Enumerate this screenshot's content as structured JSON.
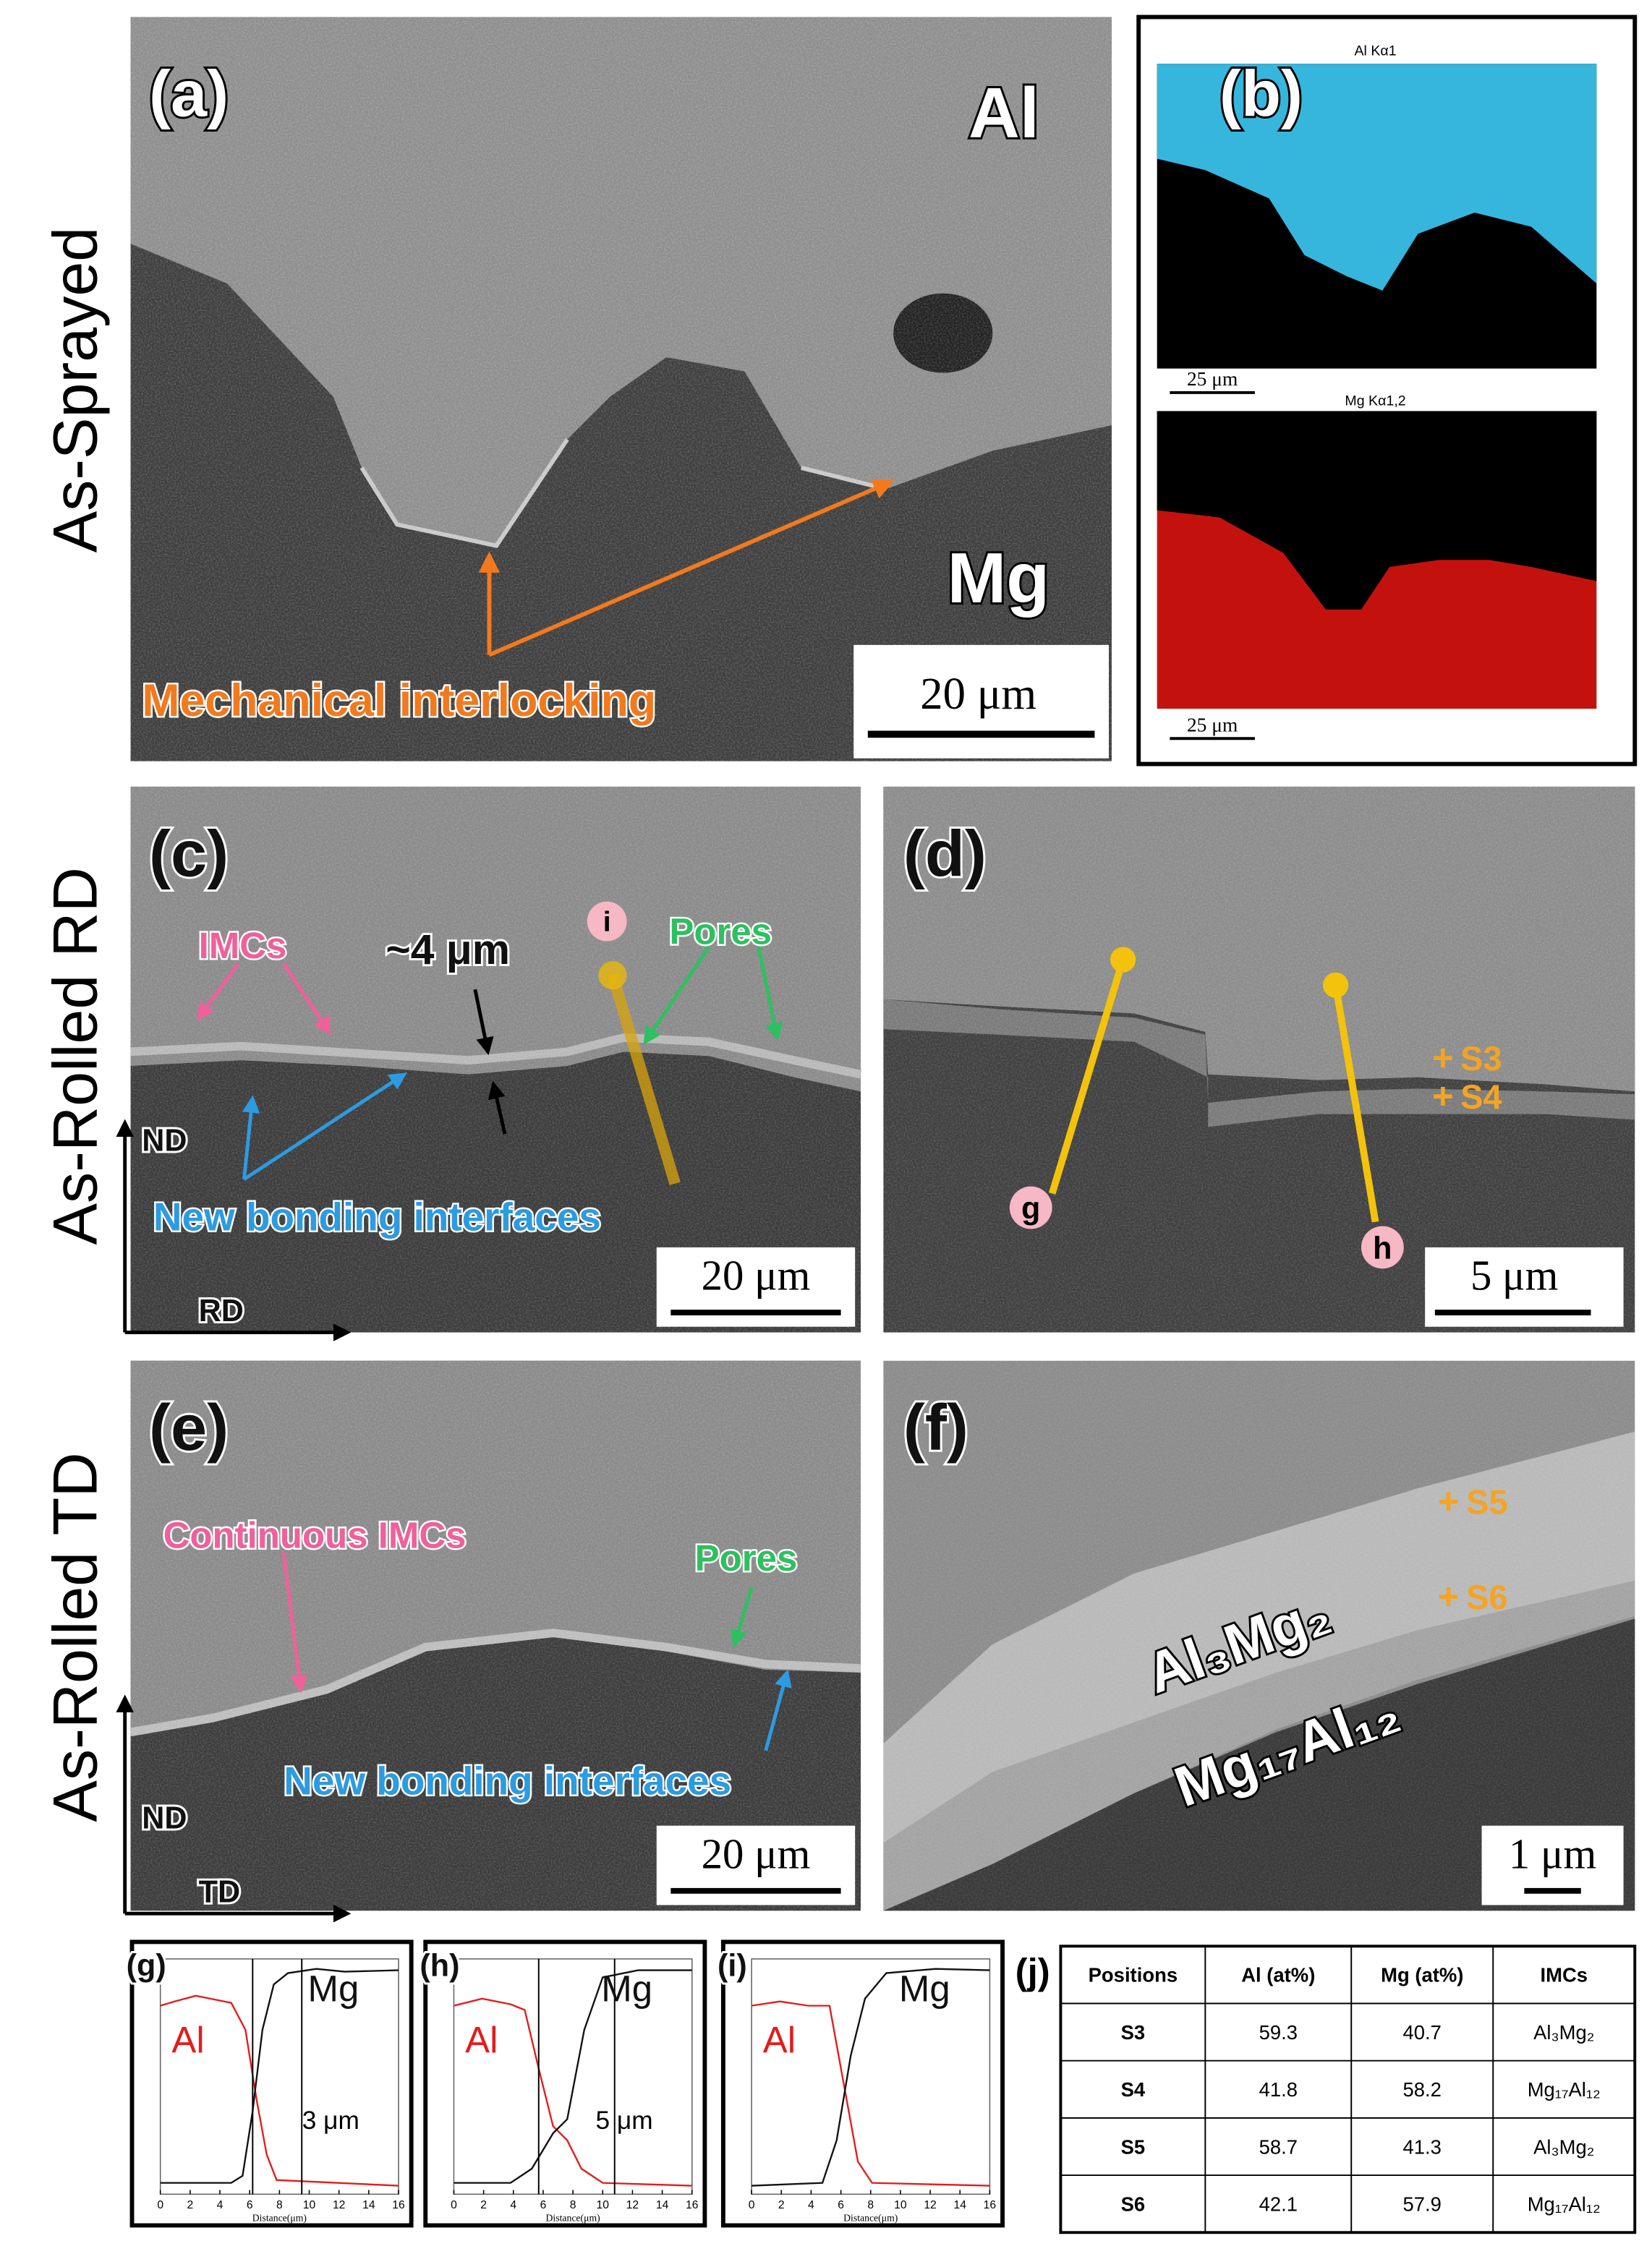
{
  "row_labels": [
    "As-Sprayed",
    "As-Rolled RD",
    "As-Rolled TD"
  ],
  "panel_a": {
    "label": "(a)",
    "phase_top": "Al",
    "phase_bottom": "Mg",
    "annotation": "Mechanical interlocking",
    "scale_bar": "20 μm"
  },
  "panel_b": {
    "label": "(b)",
    "maps": [
      {
        "title": "Al Kα1",
        "scale_bar": "25 μm"
      },
      {
        "title": "Mg Kα1,2",
        "scale_bar": "25 μm"
      }
    ]
  },
  "panel_c": {
    "label": "(c)",
    "imcs": "IMCs",
    "thickness": "~4 μm",
    "line_label": "i",
    "pores": "Pores",
    "interfaces": "New bonding interfaces",
    "axis_y": "ND",
    "axis_x": "RD",
    "scale_bar": "20 μm"
  },
  "panel_d": {
    "label": "(d)",
    "points": [
      "S3",
      "S4"
    ],
    "line_labels": [
      "g",
      "h"
    ],
    "scale_bar": "5 μm"
  },
  "panel_e": {
    "label": "(e)",
    "imcs": "Continuous IMCs",
    "pores": "Pores",
    "interfaces": "New bonding interfaces",
    "axis_y": "ND",
    "axis_x": "TD",
    "scale_bar": "20 μm"
  },
  "panel_f": {
    "label": "(f)",
    "points": [
      "S5",
      "S6"
    ],
    "phases": [
      "Al₃Mg₂",
      "Mg₁₇Al₁₂"
    ],
    "scale_bar": "1 μm"
  },
  "profile_axis": {
    "xlabel": "Distance(μm)",
    "xlim": [
      0,
      16
    ],
    "xticks": [
      0,
      2,
      4,
      6,
      8,
      10,
      12,
      14,
      16
    ]
  },
  "profiles": [
    {
      "label": "(g)",
      "al": "Al",
      "mg": "Mg",
      "width_label": "3 μm",
      "bounds": [
        6.2,
        9.5
      ]
    },
    {
      "label": "(h)",
      "al": "Al",
      "mg": "Mg",
      "width_label": "5 μm",
      "bounds": [
        5.7,
        10.8
      ]
    },
    {
      "label": "(i)",
      "al": "Al",
      "mg": "Mg"
    }
  ],
  "table": {
    "label": "(j)",
    "header": [
      "Positions",
      "Al (at%)",
      "Mg (at%)",
      "IMCs"
    ],
    "rows": [
      [
        "S3",
        59.3,
        40.7,
        "Al₃Mg₂"
      ],
      [
        "S4",
        41.8,
        58.2,
        "Mg₁₇Al₁₂"
      ],
      [
        "S5",
        58.7,
        41.3,
        "Al₃Mg₂"
      ],
      [
        "S6",
        42.1,
        57.9,
        "Mg₁₇Al₁₂"
      ]
    ]
  }
}
